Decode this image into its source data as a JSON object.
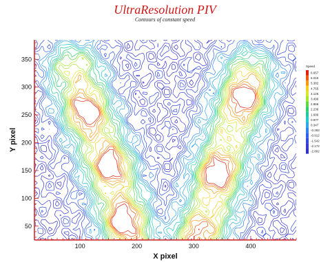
{
  "chart_data": {
    "type": "contour",
    "title": "UltraResolution PIV",
    "subtitle": "Contours of constant speed",
    "xlabel": "X pixel",
    "ylabel": "Y pixel",
    "xlim": [
      20,
      480
    ],
    "ylim": [
      25,
      385
    ],
    "x_ticks": [
      100,
      200,
      300,
      400
    ],
    "y_ticks": [
      50,
      100,
      150,
      200,
      250,
      300,
      350
    ],
    "legend": {
      "title": "Speed",
      "placement": "right",
      "levels": [
        "6.657",
        "6.015",
        "5.382",
        "4.755",
        "4.125",
        "3.496",
        "2.866",
        "2.236",
        "1.606",
        "0.977",
        "0.347",
        "-0.283",
        "-0.912",
        "-1.542",
        "-2.172",
        "-2.802"
      ],
      "colors": [
        "#e02010",
        "#f05a10",
        "#f59a10",
        "#f5d020",
        "#d8e830",
        "#a8e830",
        "#60d840",
        "#30d070",
        "#20c8a0",
        "#20c8d0",
        "#30a8e8",
        "#3080f0",
        "#3060f0",
        "#3048e0",
        "#3838d8",
        "#3030c8"
      ]
    },
    "color_scale": {
      "min_color": "#3030d0",
      "max_color": "#f01010"
    },
    "high_speed_regions": [
      {
        "x": 110,
        "y": 255,
        "level": "high"
      },
      {
        "x": 155,
        "y": 160,
        "level": "high"
      },
      {
        "x": 175,
        "y": 60,
        "level": "high"
      },
      {
        "x": 340,
        "y": 145,
        "level": "high"
      },
      {
        "x": 390,
        "y": 280,
        "level": "high"
      },
      {
        "x": 310,
        "y": 40,
        "level": "medium"
      }
    ]
  }
}
